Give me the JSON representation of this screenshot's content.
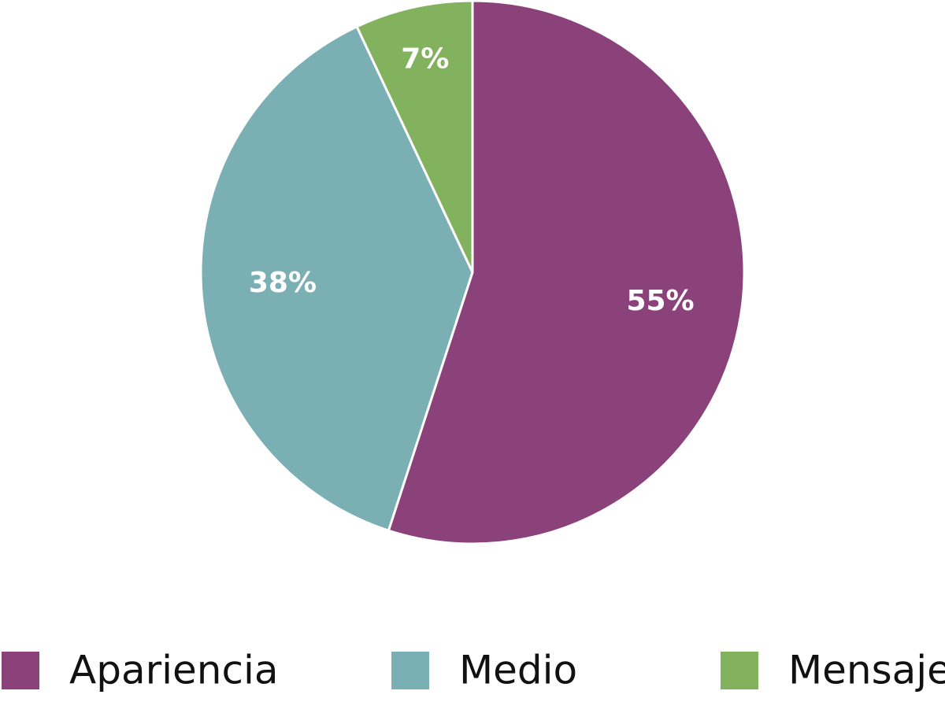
{
  "chart_data": {
    "type": "pie",
    "categories": [
      "Apariencia",
      "Medio",
      "Mensaje"
    ],
    "values": [
      55,
      38,
      7
    ],
    "value_labels": [
      "55%",
      "38%",
      "7%"
    ],
    "colors": [
      "#8b427a",
      "#7aafb3",
      "#82b25d"
    ],
    "legend": "bottom"
  }
}
